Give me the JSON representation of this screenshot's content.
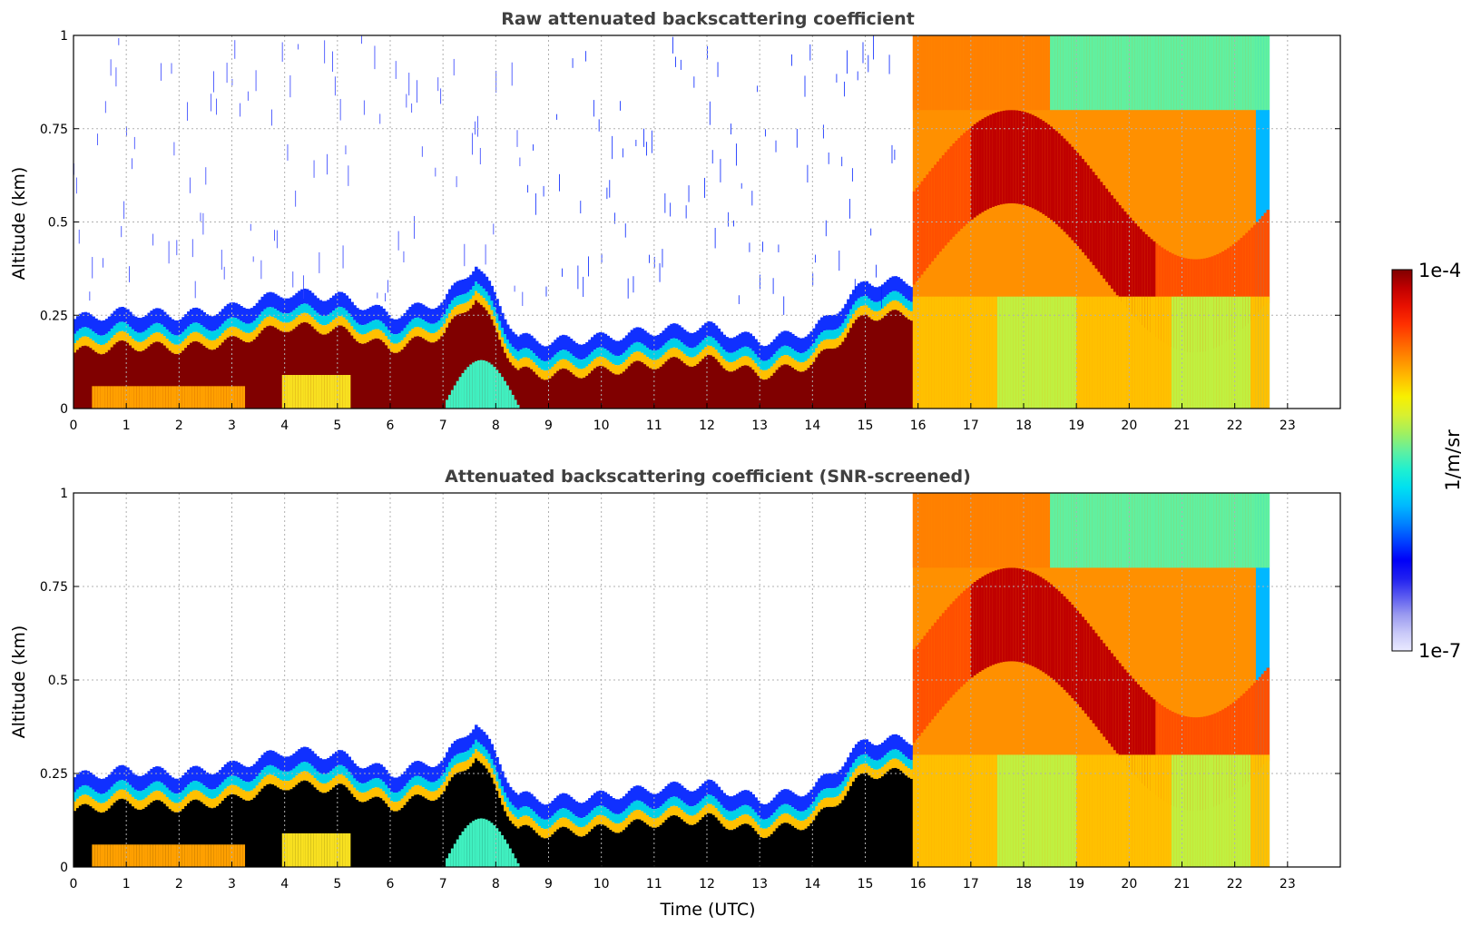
{
  "chart_data": [
    {
      "type": "heatmap",
      "title": "Raw attenuated backscattering coefficient",
      "xlabel": "",
      "ylabel": "Altitude (km)",
      "xlim": [
        0,
        24
      ],
      "ylim": [
        0,
        1
      ],
      "xticks": [
        "0",
        "1",
        "2",
        "3",
        "4",
        "5",
        "6",
        "7",
        "8",
        "9",
        "10",
        "11",
        "12",
        "13",
        "14",
        "15",
        "16",
        "17",
        "18",
        "19",
        "20",
        "21",
        "22",
        "23"
      ],
      "yticks": [
        "0",
        "0.25",
        "0.5",
        "0.75",
        "1"
      ],
      "ytick_values": [
        0,
        0.25,
        0.5,
        0.75,
        1
      ],
      "grid": true,
      "data_end_time": 22.65,
      "dense_layer_top_km": {
        "time": [
          0,
          1,
          2,
          3,
          4,
          5,
          6,
          7,
          7.6,
          8.4,
          9,
          10,
          11,
          12,
          13,
          14,
          15,
          16
        ],
        "top": [
          0.2,
          0.22,
          0.21,
          0.23,
          0.27,
          0.26,
          0.21,
          0.25,
          0.35,
          0.15,
          0.14,
          0.15,
          0.17,
          0.18,
          0.14,
          0.17,
          0.3,
          0.3
        ]
      },
      "note_regions": [
        {
          "from": 0,
          "to": 8.4,
          "description": "saturated (dark red) boundary layer below aerosol top, noise above"
        },
        {
          "from": 15.9,
          "to": 22.65,
          "description": "deep orange/red/yellow aerosol layer extending to 1 km"
        }
      ]
    },
    {
      "type": "heatmap",
      "title": "Attenuated backscattering coefficient (SNR-screened)",
      "xlabel": "Time (UTC)",
      "ylabel": "Altitude (km)",
      "xlim": [
        0,
        24
      ],
      "ylim": [
        0,
        1
      ],
      "xticks": [
        "0",
        "1",
        "2",
        "3",
        "4",
        "5",
        "6",
        "7",
        "8",
        "9",
        "10",
        "11",
        "12",
        "13",
        "14",
        "15",
        "16",
        "17",
        "18",
        "19",
        "20",
        "21",
        "22",
        "23"
      ],
      "yticks": [
        "0",
        "0.25",
        "0.5",
        "0.75",
        "1"
      ],
      "ytick_values": [
        0,
        0.25,
        0.5,
        0.75,
        1
      ],
      "grid": true,
      "data_end_time": 22.65
    }
  ],
  "colorbar": {
    "label": "1/m/sr",
    "max_label": "1e-4",
    "min_label": "1e-7",
    "colors": [
      "#eaeaff",
      "#c8c8f8",
      "#9a9af0",
      "#5a5af0",
      "#2020f0",
      "#0000f8",
      "#0040ff",
      "#0080ff",
      "#00b8ff",
      "#00e0f0",
      "#20f0d0",
      "#60f0a0",
      "#a0f060",
      "#d8f030",
      "#f8f000",
      "#ffc000",
      "#ff9000",
      "#ff6000",
      "#ff3000",
      "#e81000",
      "#c00000",
      "#800000"
    ]
  }
}
